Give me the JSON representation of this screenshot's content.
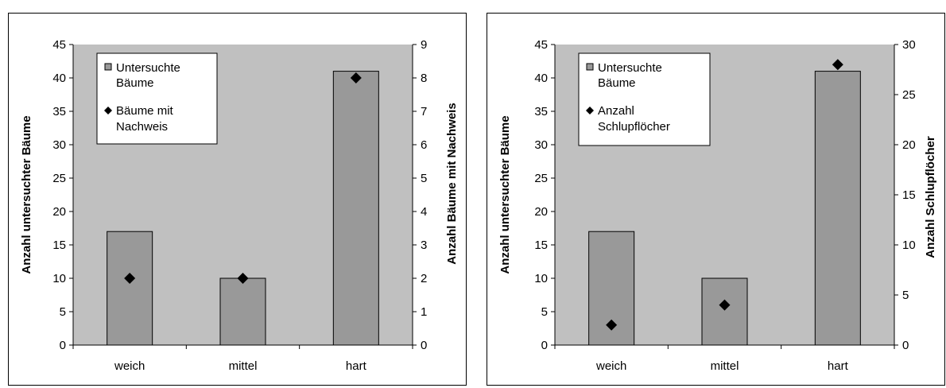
{
  "chart_data": [
    {
      "type": "bar",
      "categories": [
        "weich",
        "mittel",
        "hart"
      ],
      "series": [
        {
          "name": "Untersuchte Bäume",
          "type": "bar",
          "axis": "left",
          "values": [
            17,
            10,
            41
          ]
        },
        {
          "name": "Bäume mit Nachweis",
          "type": "scatter",
          "axis": "right",
          "values": [
            2,
            2,
            8
          ]
        }
      ],
      "ylabel": "Anzahl untersuchter Bäume",
      "ylabel_right": "Anzahl Bäume mit Nachweis",
      "ylim": [
        0,
        45
      ],
      "ylim_right": [
        0,
        9
      ],
      "yticks": [
        0,
        5,
        10,
        15,
        20,
        25,
        30,
        35,
        40,
        45
      ],
      "yticks_right": [
        0,
        1,
        2,
        3,
        4,
        5,
        6,
        7,
        8,
        9
      ],
      "legend_lines": [
        [
          "Untersuchte",
          "Bäume"
        ],
        [
          "Bäume mit",
          "Nachweis"
        ]
      ],
      "legend_position": "top-left",
      "grid": false,
      "colors": {
        "plot_bg": "#c0c0c0",
        "bar": "#999999",
        "marker": "#000000"
      }
    },
    {
      "type": "bar",
      "categories": [
        "weich",
        "mittel",
        "hart"
      ],
      "series": [
        {
          "name": "Untersuchte Bäume",
          "type": "bar",
          "axis": "left",
          "values": [
            17,
            10,
            41
          ]
        },
        {
          "name": "Anzahl Schlupflöcher",
          "type": "scatter",
          "axis": "right",
          "values": [
            2,
            4,
            28
          ]
        }
      ],
      "ylabel": "Anzahl untersuchter Bäume",
      "ylabel_right": "Anzahl Schlupflöcher",
      "ylim": [
        0,
        45
      ],
      "ylim_right": [
        0,
        30
      ],
      "yticks": [
        0,
        5,
        10,
        15,
        20,
        25,
        30,
        35,
        40,
        45
      ],
      "yticks_right": [
        0,
        5,
        10,
        15,
        20,
        25,
        30
      ],
      "legend_lines": [
        [
          "Untersuchte",
          "Bäume"
        ],
        [
          "Anzahl",
          "Schlupflöcher"
        ]
      ],
      "legend_position": "top-left",
      "grid": false,
      "colors": {
        "plot_bg": "#c0c0c0",
        "bar": "#999999",
        "marker": "#000000"
      }
    }
  ]
}
